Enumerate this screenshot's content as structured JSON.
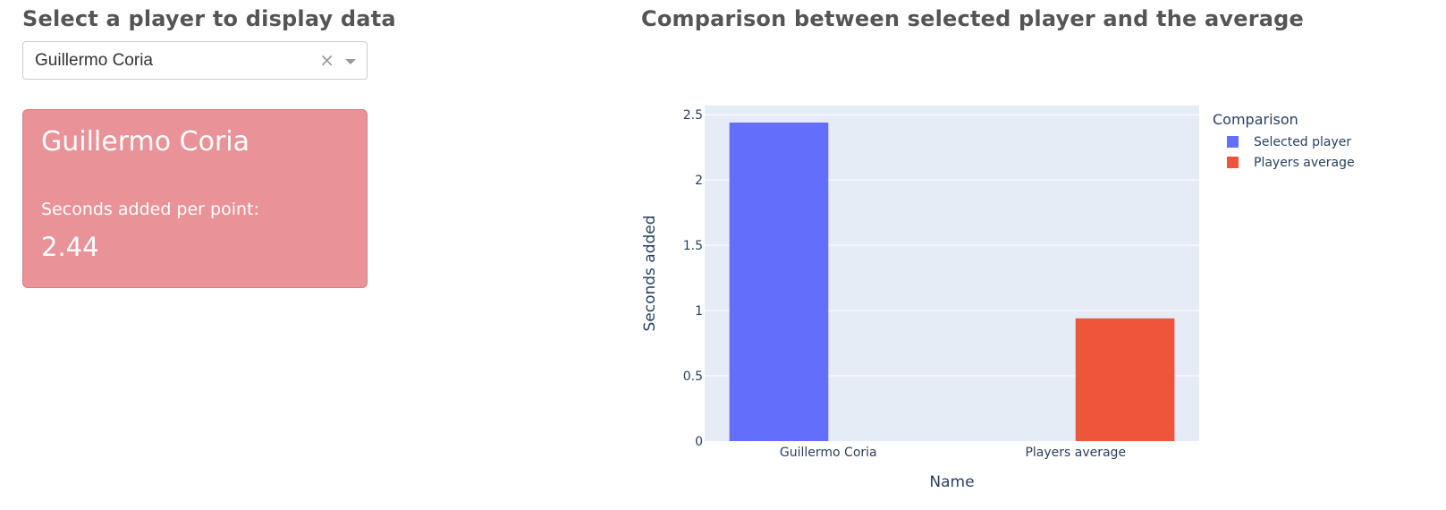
{
  "left_panel": {
    "heading": "Select a player to display data",
    "select": {
      "value": "Guillermo Coria",
      "clear_glyph": "×"
    },
    "card": {
      "name": "Guillermo Coria",
      "label": "Seconds added per point:",
      "value": "2.44",
      "color": "#e99297"
    }
  },
  "chart_panel": {
    "title": "Comparison between selected player and the average"
  },
  "chart_data": {
    "type": "bar",
    "categories": [
      "Guillermo Coria",
      "Players average"
    ],
    "series": [
      {
        "name": "Selected player",
        "color": "#636efa",
        "category": "Guillermo Coria",
        "value": 2.44
      },
      {
        "name": "Players average",
        "color": "#ef553b",
        "category": "Players average",
        "value": 0.94
      }
    ],
    "xlabel": "Name",
    "ylabel": "Seconds added",
    "ylim": [
      0,
      2.57
    ],
    "yticks": [
      0,
      0.5,
      1,
      1.5,
      2,
      2.5
    ],
    "ytick_labels": [
      "0",
      "0.5",
      "1",
      "1.5",
      "2",
      "2.5"
    ],
    "legend_title": "Comparison",
    "legend_position": "top-right",
    "grid": true,
    "plot_background": "#e5ecf6"
  }
}
